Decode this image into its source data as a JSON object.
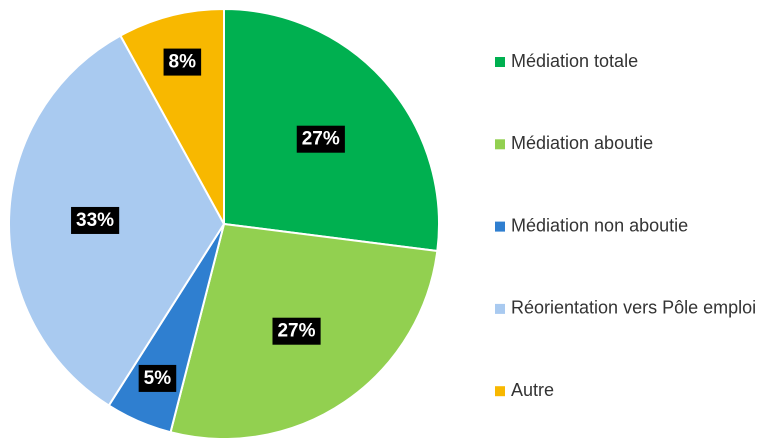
{
  "chart_data": {
    "type": "pie",
    "categories": [
      "Médiation totale",
      "Médiation aboutie",
      "Médiation non aboutie",
      "Réorientation vers Pôle emploi",
      "Autre"
    ],
    "values": [
      27,
      27,
      5,
      33,
      8
    ],
    "value_labels": [
      "27%",
      "27%",
      "5%",
      "33%",
      "8%"
    ],
    "colors": [
      "#00b050",
      "#92d050",
      "#2f7fd0",
      "#a9caf0",
      "#f8b800"
    ],
    "legend": "right"
  }
}
